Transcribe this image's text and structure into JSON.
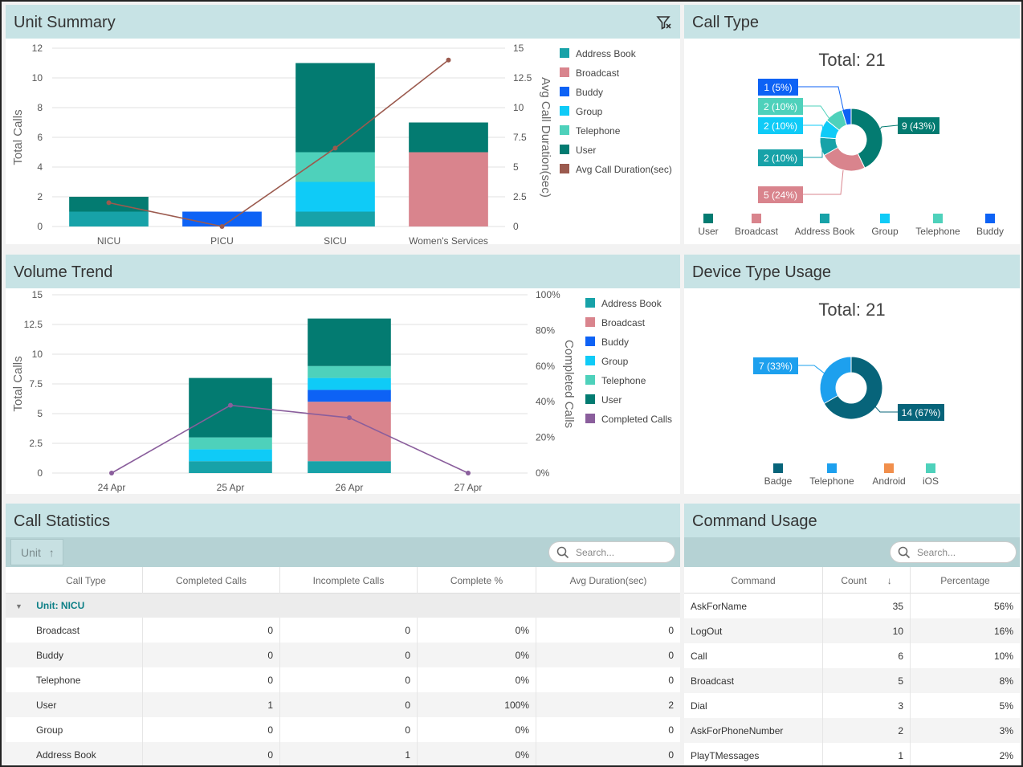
{
  "panels": {
    "unit_summary": "Unit Summary",
    "call_type": "Call Type",
    "volume_trend": "Volume Trend",
    "device_type": "Device Type Usage",
    "call_statistics": "Call Statistics",
    "command_usage": "Command Usage"
  },
  "colors": {
    "address_book": "#17a2a8",
    "broadcast": "#d9848d",
    "buddy": "#0d62f5",
    "group": "#0fcbf7",
    "telephone": "#4ed1bb",
    "user": "#037b71",
    "avg_line": "#9b5a4e",
    "completed_line": "#8a5e9c",
    "badge": "#07647a",
    "dev_telephone": "#1da0ee",
    "android": "#f18f4c",
    "ios": "#4ed1bb"
  },
  "chart_data": [
    {
      "type": "bar",
      "name": "unit_summary",
      "categories": [
        "NICU",
        "PICU",
        "SICU",
        "Women's Services"
      ],
      "series": [
        {
          "name": "Address Book",
          "values": [
            1,
            0,
            1,
            0
          ]
        },
        {
          "name": "Broadcast",
          "values": [
            0,
            0,
            0,
            5
          ]
        },
        {
          "name": "Buddy",
          "values": [
            0,
            1,
            0,
            0
          ]
        },
        {
          "name": "Group",
          "values": [
            0,
            0,
            2,
            0
          ]
        },
        {
          "name": "Telephone",
          "values": [
            0,
            0,
            2,
            0
          ]
        },
        {
          "name": "User",
          "values": [
            1,
            0,
            6,
            2
          ]
        }
      ],
      "line": {
        "name": "Avg Call Duration(sec)",
        "values": [
          2,
          0,
          6.6,
          14
        ]
      },
      "ylabel": "Total Calls",
      "y2label": "Avg Call Duration(sec)",
      "yticks": [
        "0",
        "2",
        "4",
        "6",
        "8",
        "10",
        "12"
      ],
      "y2ticks": [
        "0",
        "2.5",
        "5",
        "7.5",
        "10",
        "12.5",
        "15"
      ],
      "ylim": [
        0,
        12
      ],
      "y2lim": [
        0,
        15
      ],
      "legend_position": "right"
    },
    {
      "type": "pie",
      "name": "call_type",
      "total_label": "Total: 21",
      "slices": [
        {
          "name": "User",
          "value": 9,
          "label": "9 (43%)"
        },
        {
          "name": "Broadcast",
          "value": 5,
          "label": "5 (24%)"
        },
        {
          "name": "Address Book",
          "value": 2,
          "label": "2 (10%)"
        },
        {
          "name": "Group",
          "value": 2,
          "label": "2 (10%)"
        },
        {
          "name": "Telephone",
          "value": 2,
          "label": "2 (10%)"
        },
        {
          "name": "Buddy",
          "value": 1,
          "label": "1 (5%)"
        }
      ],
      "legend_position": "bottom"
    },
    {
      "type": "bar",
      "name": "volume_trend",
      "categories": [
        "24 Apr",
        "25 Apr",
        "26 Apr",
        "27 Apr"
      ],
      "series": [
        {
          "name": "Address Book",
          "values": [
            0,
            1,
            1,
            0
          ]
        },
        {
          "name": "Broadcast",
          "values": [
            0,
            0,
            5,
            0
          ]
        },
        {
          "name": "Buddy",
          "values": [
            0,
            0,
            1,
            0
          ]
        },
        {
          "name": "Group",
          "values": [
            0,
            1,
            1,
            0
          ]
        },
        {
          "name": "Telephone",
          "values": [
            0,
            1,
            1,
            0
          ]
        },
        {
          "name": "User",
          "values": [
            0,
            5,
            4,
            0
          ]
        }
      ],
      "line": {
        "name": "Completed Calls",
        "values": [
          0,
          38,
          31,
          0
        ]
      },
      "ylabel": "Total Calls",
      "y2label": "Completed Calls",
      "yticks": [
        "0",
        "2.5",
        "5",
        "7.5",
        "10",
        "12.5",
        "15"
      ],
      "y2ticks": [
        "0%",
        "20%",
        "40%",
        "60%",
        "80%",
        "100%"
      ],
      "ylim": [
        0,
        15
      ],
      "y2lim": [
        0,
        100
      ],
      "legend_position": "right"
    },
    {
      "type": "pie",
      "name": "device_type",
      "total_label": "Total: 21",
      "slices": [
        {
          "name": "Badge",
          "value": 14,
          "label": "14 (67%)"
        },
        {
          "name": "Telephone",
          "value": 7,
          "label": "7 (33%)"
        },
        {
          "name": "Android",
          "value": 0,
          "label": ""
        },
        {
          "name": "iOS",
          "value": 0,
          "label": ""
        }
      ],
      "legend_position": "bottom"
    }
  ],
  "call_statistics": {
    "group_chip": "Unit",
    "search_placeholder": "Search...",
    "columns": [
      "Call Type",
      "Completed Calls",
      "Incomplete Calls",
      "Complete %",
      "Avg Duration(sec)"
    ],
    "group_label": "Unit: NICU",
    "rows": [
      [
        "Broadcast",
        "0",
        "0",
        "0%",
        "0"
      ],
      [
        "Buddy",
        "0",
        "0",
        "0%",
        "0"
      ],
      [
        "Telephone",
        "0",
        "0",
        "0%",
        "0"
      ],
      [
        "User",
        "1",
        "0",
        "100%",
        "2"
      ],
      [
        "Group",
        "0",
        "0",
        "0%",
        "0"
      ],
      [
        "Address Book",
        "0",
        "1",
        "0%",
        "0"
      ]
    ]
  },
  "command_usage": {
    "search_placeholder": "Search...",
    "columns": [
      "Command",
      "Count",
      "Percentage"
    ],
    "rows": [
      [
        "AskForName",
        "35",
        "56%"
      ],
      [
        "LogOut",
        "10",
        "16%"
      ],
      [
        "Call",
        "6",
        "10%"
      ],
      [
        "Broadcast",
        "5",
        "8%"
      ],
      [
        "Dial",
        "3",
        "5%"
      ],
      [
        "AskForPhoneNumber",
        "2",
        "3%"
      ],
      [
        "PlayTMessages",
        "1",
        "2%"
      ]
    ]
  }
}
